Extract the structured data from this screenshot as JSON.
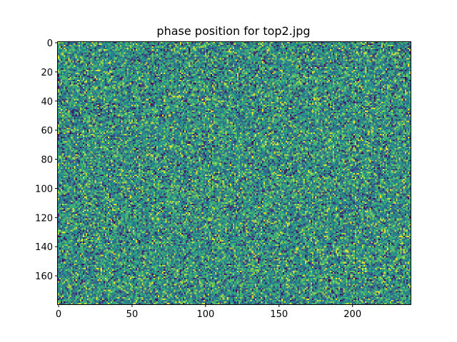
{
  "chart_data": {
    "type": "heatmap",
    "title": "phase position for top2.jpg",
    "xlabel": "",
    "ylabel": "",
    "grid": false,
    "colormap": "viridis",
    "colors": [
      "#440154",
      "#3b528b",
      "#21918c",
      "#5ec962",
      "#fde725"
    ],
    "image_shape": {
      "rows": 180,
      "cols": 240
    },
    "xlim": [
      -0.5,
      239.5
    ],
    "ylim": [
      179.5,
      -0.5
    ],
    "x_ticks": [
      0,
      50,
      100,
      150,
      200
    ],
    "x_tick_labels": [
      "0",
      "50",
      "100",
      "150",
      "200"
    ],
    "y_ticks": [
      0,
      20,
      40,
      60,
      80,
      100,
      120,
      140,
      160
    ],
    "y_tick_labels": [
      "0",
      "20",
      "40",
      "60",
      "80",
      "100",
      "120",
      "140",
      "160"
    ],
    "value_range": [
      -3.14,
      3.14
    ]
  }
}
